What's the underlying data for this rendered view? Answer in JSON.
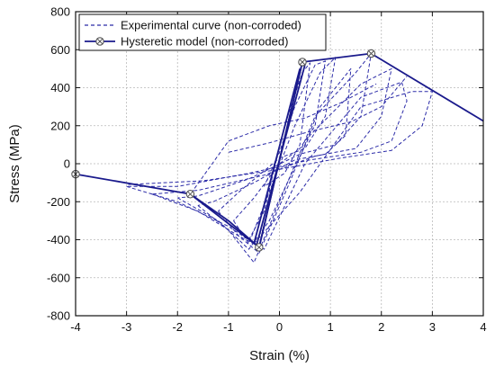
{
  "chart_data": {
    "type": "line",
    "xlabel": "Strain (%)",
    "ylabel": "Stress (MPa)",
    "xlim": [
      -4,
      4
    ],
    "ylim": [
      -800,
      800
    ],
    "x_ticks": [
      -4,
      -3,
      -2,
      -1,
      0,
      1,
      2,
      3,
      4
    ],
    "y_ticks": [
      -800,
      -600,
      -400,
      -200,
      0,
      200,
      400,
      600,
      800
    ],
    "grid": true,
    "legend_position": "top-left",
    "colors": {
      "series": "#2b2ba8",
      "model": "#1a1a8c",
      "grid": "#b8b8b8"
    },
    "series": [
      {
        "name": "Experimental curve (non-corroded)",
        "style": "dashed",
        "loops": [
          {
            "x": [
              -0.6,
              -0.3,
              0.1,
              0.45,
              0.6,
              0.4,
              0.1,
              -0.3
            ],
            "y": [
              -400,
              -250,
              200,
              480,
              530,
              100,
              -50,
              -120
            ]
          },
          {
            "x": [
              -0.3,
              0.0,
              0.3,
              0.7,
              0.9,
              0.7,
              0.4,
              0.0,
              -0.5,
              -0.9
            ],
            "y": [
              -120,
              60,
              300,
              520,
              540,
              200,
              80,
              0,
              -180,
              -300
            ]
          },
          {
            "x": [
              -0.9,
              -0.6,
              -0.2,
              0.3,
              0.8,
              1.1,
              0.9,
              0.5,
              0.0,
              -0.8,
              -1.2
            ],
            "y": [
              -300,
              -420,
              -150,
              200,
              480,
              560,
              250,
              80,
              30,
              -150,
              -250
            ]
          },
          {
            "x": [
              -1.2,
              -0.8,
              -0.4,
              0.2,
              0.8,
              1.4,
              1.3,
              0.9,
              0.3,
              -0.5,
              -1.3,
              -1.6
            ],
            "y": [
              -250,
              -380,
              -470,
              -100,
              300,
              500,
              150,
              50,
              20,
              -100,
              -200,
              -220
            ]
          },
          {
            "x": [
              -1.6,
              -1.0,
              -0.5,
              0.0,
              0.7,
              1.5,
              1.8,
              1.6,
              1.1,
              0.4,
              -0.6,
              -1.6,
              -2.0
            ],
            "y": [
              -220,
              -350,
              -520,
              -200,
              250,
              480,
              580,
              250,
              100,
              50,
              -80,
              -170,
              -180
            ]
          },
          {
            "x": [
              -2.0,
              -1.2,
              -0.6,
              -0.2,
              0.6,
              1.6,
              2.2,
              2.0,
              1.5,
              0.7,
              -0.3,
              -1.6,
              -2.5
            ],
            "y": [
              -180,
              -300,
              -450,
              -300,
              150,
              420,
              500,
              250,
              80,
              40,
              -60,
              -140,
              -160
            ]
          },
          {
            "x": [
              -2.5,
              -1.6,
              -0.8,
              -0.3,
              0.5,
              1.6,
              2.4,
              2.5,
              2.2,
              1.6,
              0.6,
              -0.6,
              -2.0,
              -3.0
            ],
            "y": [
              -160,
              -250,
              -380,
              -450,
              0,
              350,
              430,
              330,
              120,
              60,
              20,
              -50,
              -120,
              -120
            ]
          },
          {
            "x": [
              -3.0,
              -2.0,
              -1.0,
              -0.5,
              0.4,
              1.6,
              2.6,
              3.0,
              2.8,
              2.2,
              1.2,
              0.0,
              -1.5,
              -3.0
            ],
            "y": [
              -120,
              -200,
              -330,
              -420,
              -150,
              300,
              380,
              380,
              200,
              70,
              30,
              -30,
              -90,
              -110
            ]
          },
          {
            "x": [
              -1.8,
              -1.0,
              -0.2,
              0.5,
              1.2,
              1.9
            ],
            "y": [
              -180,
              120,
              200,
              240,
              320,
              420
            ]
          },
          {
            "x": [
              -1.0,
              -0.2,
              0.6,
              1.4,
              2.0,
              2.5
            ],
            "y": [
              60,
              110,
              170,
              220,
              300,
              460
            ]
          }
        ]
      },
      {
        "name": "Hysteretic model (non-corroded)",
        "style": "solid-markers",
        "x": [
          -4.0,
          -1.75,
          -0.4,
          0.45,
          1.8,
          4.0
        ],
        "y": [
          -55,
          -160,
          -440,
          535,
          580,
          225
        ],
        "markers": [
          [
            -4.0,
            -55
          ],
          [
            -1.75,
            -160
          ],
          [
            -0.4,
            -440
          ],
          [
            0.45,
            535
          ],
          [
            1.8,
            580
          ]
        ],
        "extra_lines": [
          {
            "x": [
              -1.75,
              -1.0,
              -0.4
            ],
            "y": [
              -160,
              -300,
              -440
            ]
          },
          {
            "x": [
              -0.4,
              0.45
            ],
            "y": [
              -440,
              535
            ]
          },
          {
            "x": [
              -0.5,
              0.4
            ],
            "y": [
              -420,
              500
            ]
          },
          {
            "x": [
              -0.45,
              0.5
            ],
            "y": [
              -430,
              520
            ]
          }
        ]
      }
    ]
  }
}
